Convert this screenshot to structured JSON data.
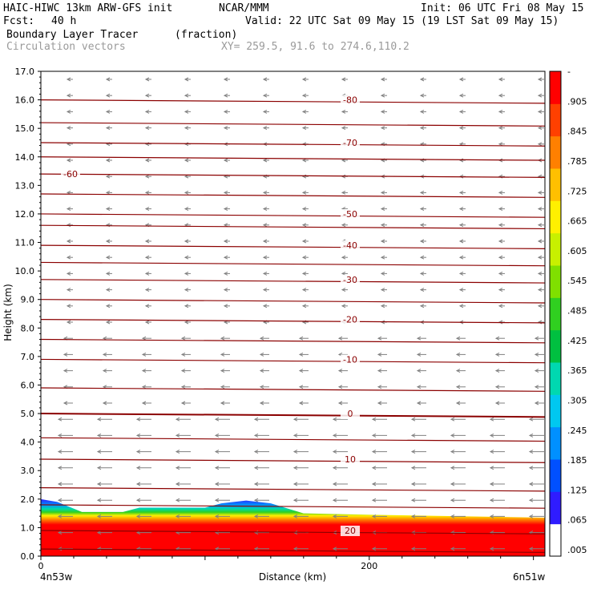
{
  "header": {
    "model": "HAIC-HIWC 13km ARW-GFS init",
    "org": "NCAR/MMM",
    "init": "Init: 06 UTC Fri 08 May 15",
    "fcst_label": "Fcst:",
    "fcst_value": "40 h",
    "valid": "Valid: 22 UTC Sat 09 May 15 (19 LST Sat 09 May 15)",
    "field": "Boundary Layer Tracer",
    "field_units": "(fraction)",
    "vectors": "Circulation vectors",
    "xy": "XY= 259.5, 91.6 to 274.6,110.2"
  },
  "colors": {
    "contour": "#8b0000",
    "vector": "#808080",
    "colorbar": [
      "#ffffff",
      "#2f1cff",
      "#0050ff",
      "#0090ff",
      "#00c8f0",
      "#00d8b0",
      "#00c040",
      "#30d020",
      "#80e000",
      "#c8f000",
      "#fff000",
      "#ffc000",
      "#ff8000",
      "#ff4000",
      "#ff0000"
    ]
  },
  "chart_data": {
    "type": "heatmap",
    "title": "Boundary Layer Tracer (fraction)",
    "xlabel": "Distance (km)",
    "ylabel": "Height (km)",
    "xlim": [
      0,
      307
    ],
    "ylim": [
      0,
      17
    ],
    "x_ticks": [
      0,
      200
    ],
    "x_tick_labels": [
      "0",
      "200"
    ],
    "x_end_labels": [
      "4n53w",
      "6n51w"
    ],
    "y_ticks": [
      0,
      1,
      2,
      3,
      4,
      5,
      6,
      7,
      8,
      9,
      10,
      11,
      12,
      13,
      14,
      15,
      16,
      17
    ],
    "y_tick_labels": [
      "0.0",
      "1.0",
      "2.0",
      "3.0",
      "4.0",
      "5.0",
      "6.0",
      "7.0",
      "8.0",
      "9.0",
      "10.0",
      "11.0",
      "12.0",
      "13.0",
      "14.0",
      "15.0",
      "16.0",
      "17.0"
    ],
    "colorbar_labels": [
      "-",
      ".905",
      ".845",
      ".785",
      ".725",
      ".665",
      ".605",
      ".545",
      ".485",
      ".425",
      ".365",
      ".305",
      ".245",
      ".185",
      ".125",
      ".065",
      ".005"
    ],
    "boundary_layer_top": [
      {
        "x": 0,
        "y": 2.0
      },
      {
        "x": 10,
        "y": 1.9
      },
      {
        "x": 25,
        "y": 1.55
      },
      {
        "x": 50,
        "y": 1.55
      },
      {
        "x": 60,
        "y": 1.7
      },
      {
        "x": 100,
        "y": 1.7
      },
      {
        "x": 110,
        "y": 1.85
      },
      {
        "x": 125,
        "y": 1.95
      },
      {
        "x": 140,
        "y": 1.85
      },
      {
        "x": 160,
        "y": 1.5
      },
      {
        "x": 200,
        "y": 1.45
      },
      {
        "x": 307,
        "y": 1.35
      }
    ],
    "contours": [
      {
        "label": "-80",
        "y": 16.0
      },
      {
        "label": "-70",
        "y": 14.5
      },
      {
        "label": "-60",
        "y": 13.4
      },
      {
        "label": "-50",
        "y": 12.0
      },
      {
        "label": "-40",
        "y": 10.9
      },
      {
        "label": "-30",
        "y": 9.7
      },
      {
        "label": "-20",
        "y": 8.3
      },
      {
        "label": "-10",
        "y": 6.9
      },
      {
        "label": "0",
        "y": 5.0
      },
      {
        "label": "10",
        "y": 3.4
      },
      {
        "label": "20",
        "y": 0.9
      }
    ]
  }
}
